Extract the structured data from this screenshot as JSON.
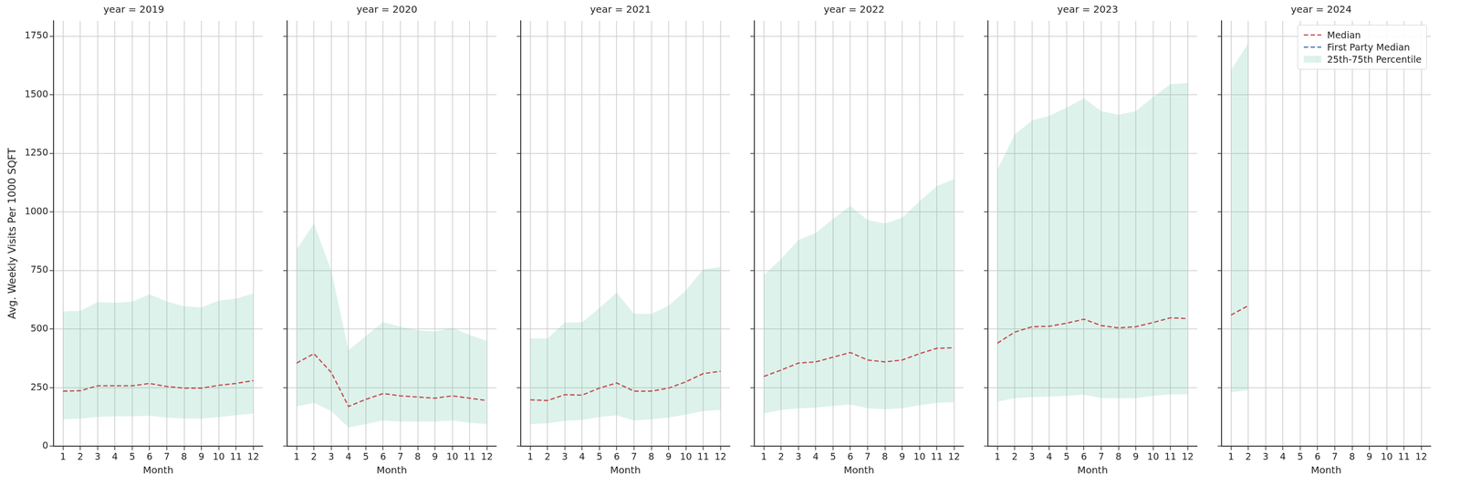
{
  "chart_data": [
    {
      "type": "line",
      "title": "year = 2019",
      "x_label": "Month",
      "y_label": "Avg. Weekly Visits Per 1000 SQFT",
      "x": [
        1,
        2,
        3,
        4,
        5,
        6,
        7,
        8,
        9,
        10,
        11,
        12
      ],
      "xlim": [
        0.45,
        12.55
      ],
      "xticks": [
        1,
        2,
        3,
        4,
        5,
        6,
        7,
        8,
        9,
        10,
        11,
        12
      ],
      "ylim": [
        0,
        1815
      ],
      "yticks": [
        0,
        250,
        500,
        750,
        1000,
        1250,
        1500,
        1750
      ],
      "grid": true,
      "series": [
        {
          "name": "Median",
          "color": "#c44e52",
          "line_style": "dashed",
          "values": [
            235,
            237,
            258,
            258,
            258,
            268,
            255,
            248,
            248,
            260,
            268,
            280
          ]
        },
        {
          "name": "First Party Median",
          "color": "#4c72b0",
          "line_style": "dashed",
          "values": [
            null,
            null,
            null,
            null,
            null,
            null,
            null,
            null,
            null,
            null,
            null,
            null
          ]
        },
        {
          "name": "25th-75th Percentile",
          "type": "area",
          "color": "#66c2a5",
          "low": [
            115,
            118,
            125,
            128,
            128,
            130,
            122,
            118,
            118,
            125,
            132,
            140
          ],
          "high": [
            575,
            578,
            615,
            612,
            617,
            648,
            618,
            597,
            592,
            622,
            630,
            652
          ]
        }
      ]
    },
    {
      "type": "line",
      "title": "year = 2020",
      "x_label": "Month",
      "x": [
        1,
        2,
        3,
        4,
        5,
        6,
        7,
        8,
        9,
        10,
        11,
        12
      ],
      "xlim": [
        0.45,
        12.55
      ],
      "xticks": [
        1,
        2,
        3,
        4,
        5,
        6,
        7,
        8,
        9,
        10,
        11,
        12
      ],
      "ylim": [
        0,
        1815
      ],
      "yticks": [
        0,
        250,
        500,
        750,
        1000,
        1250,
        1500,
        1750
      ],
      "grid": true,
      "tick_labels": "x",
      "series": [
        {
          "name": "Median",
          "color": "#c44e52",
          "line_style": "dashed",
          "values": [
            355,
            395,
            315,
            170,
            200,
            225,
            215,
            210,
            205,
            215,
            205,
            195
          ]
        },
        {
          "name": "First Party Median",
          "color": "#4c72b0",
          "line_style": "dashed",
          "values": [
            null,
            null,
            null,
            null,
            null,
            null,
            null,
            null,
            null,
            null,
            null,
            null
          ]
        },
        {
          "name": "25th-75th Percentile",
          "type": "area",
          "color": "#66c2a5",
          "low": [
            170,
            185,
            150,
            80,
            95,
            110,
            105,
            105,
            105,
            110,
            100,
            95
          ],
          "high": [
            840,
            950,
            750,
            410,
            470,
            530,
            510,
            495,
            490,
            505,
            475,
            450
          ]
        }
      ]
    },
    {
      "type": "line",
      "title": "year = 2021",
      "x_label": "Month",
      "x": [
        1,
        2,
        3,
        4,
        5,
        6,
        7,
        8,
        9,
        10,
        11,
        12
      ],
      "xlim": [
        0.45,
        12.55
      ],
      "xticks": [
        1,
        2,
        3,
        4,
        5,
        6,
        7,
        8,
        9,
        10,
        11,
        12
      ],
      "ylim": [
        0,
        1815
      ],
      "yticks": [
        0,
        250,
        500,
        750,
        1000,
        1250,
        1500,
        1750
      ],
      "grid": true,
      "tick_labels": "x",
      "series": [
        {
          "name": "Median",
          "color": "#c44e52",
          "line_style": "dashed",
          "values": [
            198,
            195,
            220,
            218,
            248,
            270,
            235,
            235,
            248,
            275,
            310,
            320
          ]
        },
        {
          "name": "First Party Median",
          "color": "#4c72b0",
          "line_style": "dashed",
          "values": [
            null,
            null,
            null,
            null,
            null,
            null,
            null,
            null,
            null,
            null,
            null,
            null
          ]
        },
        {
          "name": "25th-75th Percentile",
          "type": "area",
          "color": "#66c2a5",
          "low": [
            95,
            98,
            108,
            112,
            125,
            132,
            110,
            115,
            122,
            135,
            150,
            155
          ],
          "high": [
            460,
            460,
            528,
            528,
            590,
            655,
            565,
            565,
            600,
            665,
            755,
            765
          ]
        }
      ]
    },
    {
      "type": "line",
      "title": "year = 2022",
      "x_label": "Month",
      "x": [
        1,
        2,
        3,
        4,
        5,
        6,
        7,
        8,
        9,
        10,
        11,
        12
      ],
      "xlim": [
        0.45,
        12.55
      ],
      "xticks": [
        1,
        2,
        3,
        4,
        5,
        6,
        7,
        8,
        9,
        10,
        11,
        12
      ],
      "ylim": [
        0,
        1815
      ],
      "yticks": [
        0,
        250,
        500,
        750,
        1000,
        1250,
        1500,
        1750
      ],
      "grid": true,
      "tick_labels": "x",
      "series": [
        {
          "name": "Median",
          "color": "#c44e52",
          "line_style": "dashed",
          "values": [
            298,
            325,
            355,
            360,
            380,
            400,
            368,
            360,
            368,
            395,
            418,
            420
          ]
        },
        {
          "name": "First Party Median",
          "color": "#4c72b0",
          "line_style": "dashed",
          "values": [
            null,
            null,
            null,
            null,
            null,
            null,
            null,
            null,
            null,
            null,
            null,
            null
          ]
        },
        {
          "name": "25th-75th Percentile",
          "type": "area",
          "color": "#66c2a5",
          "low": [
            140,
            155,
            162,
            165,
            172,
            178,
            162,
            158,
            162,
            175,
            185,
            188
          ],
          "high": [
            730,
            800,
            880,
            910,
            970,
            1025,
            965,
            950,
            975,
            1045,
            1110,
            1140
          ]
        }
      ]
    },
    {
      "type": "line",
      "title": "year = 2023",
      "x_label": "Month",
      "x": [
        1,
        2,
        3,
        4,
        5,
        6,
        7,
        8,
        9,
        10,
        11,
        12
      ],
      "xlim": [
        0.45,
        12.55
      ],
      "xticks": [
        1,
        2,
        3,
        4,
        5,
        6,
        7,
        8,
        9,
        10,
        11,
        12
      ],
      "ylim": [
        0,
        1815
      ],
      "yticks": [
        0,
        250,
        500,
        750,
        1000,
        1250,
        1500,
        1750
      ],
      "grid": true,
      "tick_labels": "x",
      "series": [
        {
          "name": "Median",
          "color": "#c44e52",
          "line_style": "dashed",
          "values": [
            440,
            487,
            510,
            512,
            525,
            542,
            515,
            505,
            510,
            528,
            548,
            545
          ]
        },
        {
          "name": "First Party Median",
          "color": "#4c72b0",
          "line_style": "dashed",
          "values": [
            null,
            null,
            null,
            null,
            null,
            null,
            null,
            null,
            null,
            null,
            null,
            null
          ]
        },
        {
          "name": "25th-75th Percentile",
          "type": "area",
          "color": "#66c2a5",
          "low": [
            190,
            205,
            210,
            212,
            215,
            220,
            205,
            205,
            205,
            215,
            222,
            222
          ],
          "high": [
            1180,
            1330,
            1390,
            1410,
            1445,
            1485,
            1430,
            1415,
            1430,
            1490,
            1545,
            1550
          ]
        }
      ]
    },
    {
      "type": "line",
      "title": "year = 2024",
      "x_label": "Month",
      "x": [
        1,
        2,
        3,
        4,
        5,
        6,
        7,
        8,
        9,
        10,
        11,
        12
      ],
      "xlim": [
        0.45,
        12.55
      ],
      "xticks": [
        1,
        2,
        3,
        4,
        5,
        6,
        7,
        8,
        9,
        10,
        11,
        12
      ],
      "ylim": [
        0,
        1815
      ],
      "yticks": [
        0,
        250,
        500,
        750,
        1000,
        1250,
        1500,
        1750
      ],
      "grid": true,
      "tick_labels": "x",
      "legend": "upper right",
      "series": [
        {
          "name": "Median",
          "color": "#c44e52",
          "line_style": "dashed",
          "values": [
            560,
            600,
            null,
            null,
            null,
            null,
            null,
            null,
            null,
            null,
            null,
            null
          ]
        },
        {
          "name": "First Party Median",
          "color": "#4c72b0",
          "line_style": "dashed",
          "values": [
            null,
            null,
            null,
            null,
            null,
            null,
            null,
            null,
            null,
            null,
            null,
            null
          ]
        },
        {
          "name": "25th-75th Percentile",
          "type": "area",
          "color": "#66c2a5",
          "low": [
            230,
            240,
            null,
            null,
            null,
            null,
            null,
            null,
            null,
            null,
            null,
            null
          ],
          "high": [
            1605,
            1720,
            null,
            null,
            null,
            null,
            null,
            null,
            null,
            null,
            null,
            null
          ]
        }
      ]
    }
  ]
}
